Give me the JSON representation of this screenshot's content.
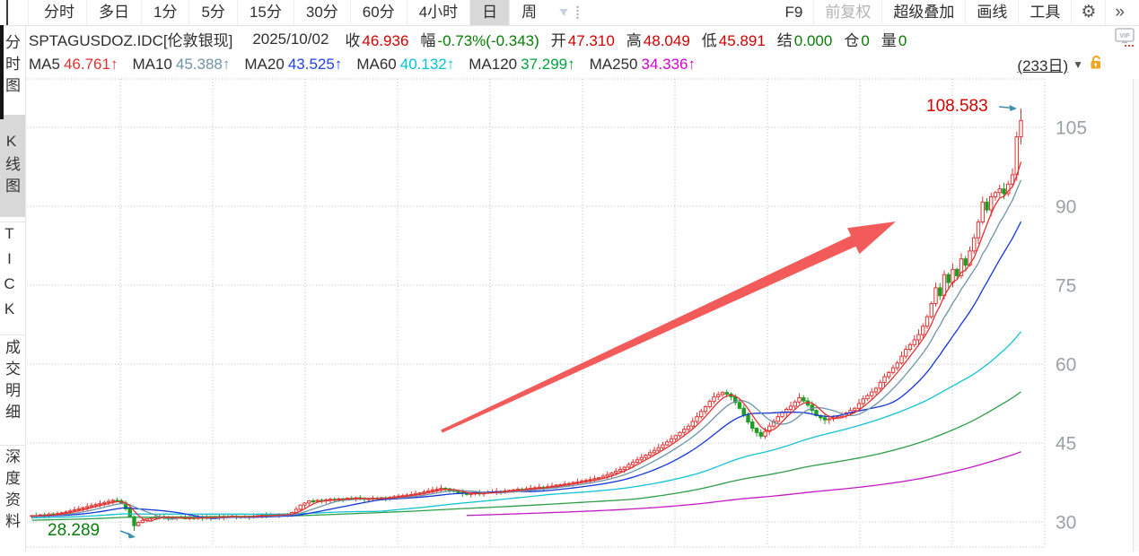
{
  "toolbar": {
    "periods": [
      "分时",
      "多日",
      "1分",
      "5分",
      "15分",
      "30分",
      "60分",
      "4小时",
      "日",
      "周"
    ],
    "active_period": "日",
    "hotkey": "F9",
    "adjust_mode": "前复权",
    "overlay": "超级叠加",
    "draw": "画线",
    "tools": "工具",
    "gear_icon": "⚙",
    "more_icon": "»"
  },
  "quote": {
    "symbol": "SPTAGUSDOZ.IDC[伦敦银现]",
    "date": "2025/10/02",
    "fields": [
      {
        "label": "收",
        "value": "46.936"
      },
      {
        "label": "幅",
        "value": "-0.73%(-0.343)"
      },
      {
        "label": "开",
        "value": "47.310"
      },
      {
        "label": "高",
        "value": "48.049"
      },
      {
        "label": "低",
        "value": "45.891"
      },
      {
        "label": "结",
        "value": "0.000"
      },
      {
        "label": "仓",
        "value": "0"
      },
      {
        "label": "量",
        "value": "0"
      }
    ],
    "vip_badge": "VIP"
  },
  "ma_bar": {
    "items": [
      {
        "label": "MA5",
        "value": "46.761↑"
      },
      {
        "label": "MA10",
        "value": "45.388↑"
      },
      {
        "label": "MA20",
        "value": "43.525↑"
      },
      {
        "label": "MA60",
        "value": "40.132↑"
      },
      {
        "label": "MA120",
        "value": "37.299↑"
      },
      {
        "label": "MA250",
        "value": "34.336↑"
      }
    ],
    "range_label": "(233日)",
    "dropdown_icon": "▼"
  },
  "sidebar": {
    "items": [
      "分时图",
      "K线图",
      "TICK",
      "成交明细",
      "深度资料"
    ],
    "active": "K线图"
  },
  "chart_data": {
    "type": "candlestick",
    "bar_count": 233,
    "y_ticks": [
      105,
      90,
      75,
      60,
      45,
      30
    ],
    "ylim": [
      28,
      110
    ],
    "closes": [
      31.2,
      31.1,
      31.35,
      31.25,
      31.5,
      31.4,
      31.6,
      31.75,
      31.9,
      32.1,
      32.3,
      32.5,
      32.7,
      32.9,
      33.1,
      33.3,
      33.5,
      33.7,
      33.9,
      34.1,
      34.0,
      33.6,
      32.5,
      31.0,
      29.3,
      29.9,
      30.3,
      30.6,
      30.8,
      30.9,
      31.0,
      30.9,
      30.8,
      30.7,
      30.85,
      30.75,
      30.65,
      30.8,
      30.7,
      30.85,
      30.75,
      30.9,
      30.8,
      31.0,
      30.9,
      31.05,
      30.95,
      31.1,
      31.0,
      30.9,
      31.05,
      30.95,
      31.1,
      31.2,
      31.3,
      31.2,
      31.35,
      31.3,
      31.4,
      31.45,
      31.5,
      31.8,
      32.4,
      33.2,
      33.6,
      34.0,
      33.9,
      34.1,
      34.0,
      34.2,
      34.3,
      34.2,
      34.4,
      34.3,
      34.5,
      34.4,
      34.6,
      34.5,
      34.3,
      34.4,
      34.5,
      34.4,
      34.6,
      34.5,
      34.7,
      34.8,
      34.9,
      35.0,
      35.1,
      35.2,
      35.4,
      35.5,
      35.7,
      35.9,
      36.1,
      36.2,
      36.4,
      36.3,
      36.0,
      35.8,
      35.6,
      35.4,
      35.3,
      35.4,
      35.5,
      35.4,
      35.5,
      35.6,
      35.7,
      35.8,
      35.7,
      35.9,
      36.0,
      36.1,
      36.2,
      36.1,
      36.3,
      36.4,
      36.5,
      36.6,
      36.5,
      36.7,
      36.8,
      37.0,
      37.1,
      37.2,
      37.3,
      37.5,
      37.6,
      37.8,
      37.9,
      38.05,
      38.25,
      38.4,
      38.7,
      39.0,
      39.3,
      39.65,
      40.0,
      40.4,
      40.9,
      41.35,
      41.8,
      42.25,
      42.7,
      43.15,
      43.6,
      44.1,
      44.65,
      45.2,
      45.8,
      46.4,
      47.0,
      47.6,
      48.2,
      49.1,
      50.0,
      51.0,
      51.9,
      52.9,
      53.8,
      54.2,
      54.6,
      54.3,
      53.8,
      52.7,
      51.6,
      50.3,
      49.0,
      47.8,
      47.0,
      46.3,
      47.2,
      48.2,
      49.1,
      50.0,
      50.8,
      51.4,
      52.0,
      52.8,
      53.6,
      53.0,
      52.2,
      51.2,
      50.2,
      49.8,
      49.4,
      49.6,
      49.8,
      50.0,
      50.3,
      50.7,
      51.2,
      51.6,
      52.5,
      53.4,
      54.0,
      54.7,
      55.4,
      56.5,
      57.6,
      58.4,
      59.3,
      60.2,
      61.5,
      62.8,
      63.7,
      64.6,
      65.6,
      67.2,
      69.0,
      71.5,
      74.5,
      73.0,
      77.0,
      75.5,
      78.0,
      76.8,
      80.0,
      78.8,
      81.5,
      84.0,
      87.0,
      90.8,
      89.3,
      91.8,
      92.6,
      93.3,
      92.4,
      94.2,
      96.0,
      103.2,
      106.3
    ],
    "high_annotation": {
      "bar": 232,
      "value": 108.583,
      "label": "108.583"
    },
    "low_annotation": {
      "bar": 24,
      "value": 28.289,
      "label": "28.289"
    },
    "ma_periods": [
      5,
      10,
      20,
      60,
      120,
      250
    ],
    "ma_colors": [
      "#e03232",
      "#6e93a8",
      "#1336d9",
      "#12c3d3",
      "#2e9e48",
      "#c41ac4"
    ],
    "ma_start_bars": [
      0,
      0,
      0,
      0,
      0,
      102
    ],
    "candle_colors": {
      "up": "#e23535",
      "down": "#1f9d23"
    },
    "grid_color": "#bdbdbd",
    "axis_text_color": "#9aa2a8",
    "trend_arrow_color": "#f24d4d",
    "callout_arrow_color": "#3d8fae",
    "high_label_color": "#d40000",
    "low_label_color": "#0a7c0a"
  }
}
